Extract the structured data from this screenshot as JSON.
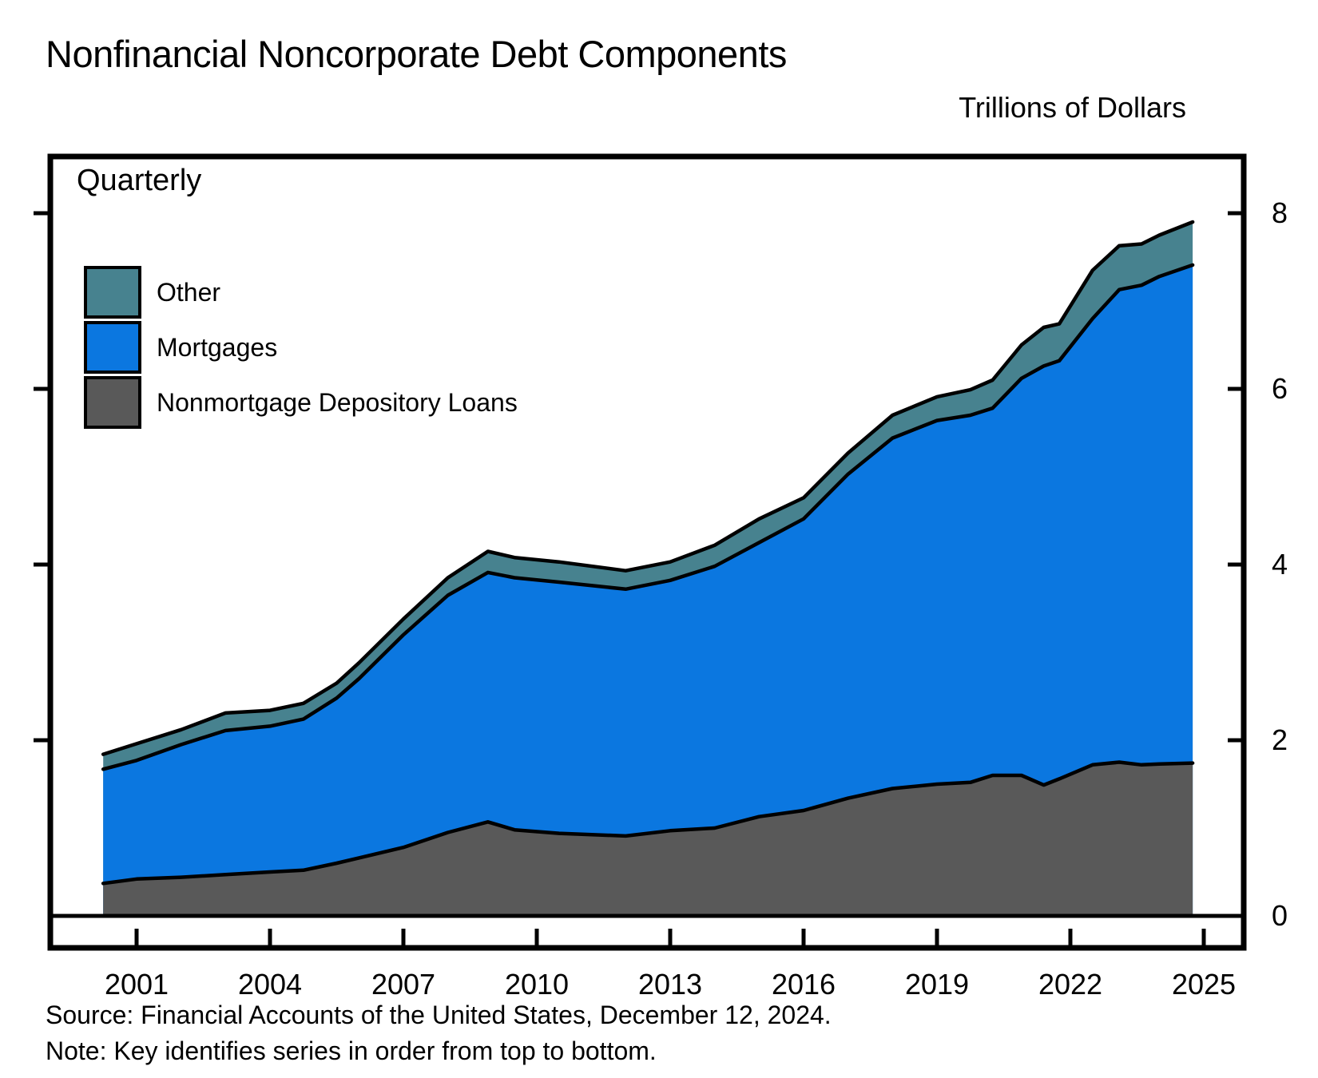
{
  "header": {
    "title": "Nonfinancial Noncorporate Debt Components",
    "units_label": "Trillions of Dollars"
  },
  "plot": {
    "frequency_label": "Quarterly"
  },
  "legend": {
    "items": [
      {
        "label": "Other",
        "color": "#47828F"
      },
      {
        "label": "Mortgages",
        "color": "#0B77E0"
      },
      {
        "label": "Nonmortgage Depository Loans",
        "color": "#595959"
      }
    ]
  },
  "footer": {
    "source": "Source: Financial Accounts of the United States, December 12, 2024.",
    "note": "Note: Key identifies series in order from top to bottom."
  },
  "chart_data": {
    "type": "area",
    "stacked": true,
    "title": "Nonfinancial Noncorporate Debt Components",
    "xlabel": "",
    "ylabel": "Trillions of Dollars",
    "frequency": "Quarterly",
    "grid": false,
    "legend_position": "top-left",
    "ylim": [
      0,
      8.7
    ],
    "xlim": [
      1999.05,
      2025.95
    ],
    "x_ticks": [
      2001,
      2004,
      2007,
      2010,
      2013,
      2016,
      2019,
      2022,
      2025
    ],
    "y_ticks": [
      0,
      2,
      4,
      6,
      8
    ],
    "x": [
      2000.25,
      2001,
      2002,
      2003,
      2004,
      2004.75,
      2005.5,
      2006,
      2007,
      2008,
      2008.9,
      2009.5,
      2010.5,
      2012.0,
      2013,
      2014,
      2015,
      2016,
      2017,
      2018,
      2019,
      2019.75,
      2020.25,
      2020.9,
      2021.4,
      2021.75,
      2022.5,
      2023.1,
      2023.6,
      2024,
      2024.75
    ],
    "series": [
      {
        "name": "Nonmortgage Depository Loans",
        "color": "#595959",
        "values": [
          0.37,
          0.42,
          0.44,
          0.47,
          0.5,
          0.52,
          0.6,
          0.66,
          0.78,
          0.95,
          1.07,
          0.98,
          0.94,
          0.91,
          0.97,
          1.0,
          1.13,
          1.2,
          1.34,
          1.45,
          1.5,
          1.52,
          1.6,
          1.6,
          1.49,
          1.56,
          1.72,
          1.75,
          1.72,
          1.73,
          1.74
        ]
      },
      {
        "name": "Mortgages",
        "color": "#0B77E0",
        "values": [
          1.3,
          1.35,
          1.51,
          1.64,
          1.66,
          1.72,
          1.88,
          2.04,
          2.42,
          2.7,
          2.84,
          2.87,
          2.86,
          2.81,
          2.85,
          2.98,
          3.12,
          3.32,
          3.69,
          3.99,
          4.14,
          4.18,
          4.18,
          4.52,
          4.77,
          4.76,
          5.08,
          5.38,
          5.46,
          5.55,
          5.67
        ]
      },
      {
        "name": "Other",
        "color": "#47828F",
        "values": [
          0.17,
          0.19,
          0.17,
          0.2,
          0.18,
          0.18,
          0.17,
          0.18,
          0.18,
          0.2,
          0.24,
          0.23,
          0.23,
          0.21,
          0.21,
          0.24,
          0.27,
          0.24,
          0.24,
          0.26,
          0.27,
          0.29,
          0.32,
          0.38,
          0.44,
          0.42,
          0.55,
          0.5,
          0.47,
          0.47,
          0.49
        ]
      }
    ]
  }
}
